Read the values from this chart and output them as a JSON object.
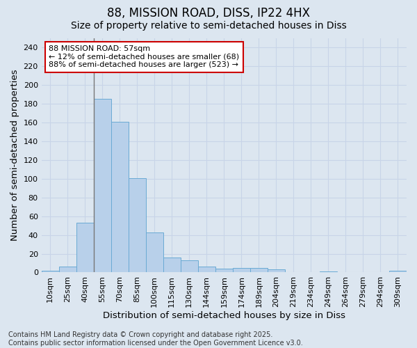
{
  "title_line1": "88, MISSION ROAD, DISS, IP22 4HX",
  "title_line2": "Size of property relative to semi-detached houses in Diss",
  "xlabel": "Distribution of semi-detached houses by size in Diss",
  "ylabel": "Number of semi-detached properties",
  "categories": [
    "10sqm",
    "25sqm",
    "40sqm",
    "55sqm",
    "70sqm",
    "85sqm",
    "100sqm",
    "115sqm",
    "130sqm",
    "144sqm",
    "159sqm",
    "174sqm",
    "189sqm",
    "204sqm",
    "219sqm",
    "234sqm",
    "249sqm",
    "264sqm",
    "279sqm",
    "294sqm",
    "309sqm"
  ],
  "values": [
    2,
    6,
    53,
    185,
    161,
    101,
    43,
    16,
    13,
    6,
    4,
    5,
    5,
    3,
    0,
    0,
    1,
    0,
    0,
    0,
    2
  ],
  "bar_color": "#b8d0ea",
  "bar_edge_color": "#6aaad4",
  "annotation_text_line1": "88 MISSION ROAD: 57sqm",
  "annotation_text_line2": "← 12% of semi-detached houses are smaller (68)",
  "annotation_text_line3": "88% of semi-detached houses are larger (523) →",
  "annotation_box_color": "#ffffff",
  "annotation_box_edge_color": "#cc0000",
  "vline_x": 2.5,
  "vline_color": "#777777",
  "ylim": [
    0,
    250
  ],
  "yticks": [
    0,
    20,
    40,
    60,
    80,
    100,
    120,
    140,
    160,
    180,
    200,
    220,
    240
  ],
  "grid_color": "#c8d4e8",
  "background_color": "#dce6f0",
  "footer_text": "Contains HM Land Registry data © Crown copyright and database right 2025.\nContains public sector information licensed under the Open Government Licence v3.0.",
  "title_fontsize": 12,
  "subtitle_fontsize": 10,
  "axis_label_fontsize": 9.5,
  "tick_fontsize": 8,
  "annotation_fontsize": 8,
  "footer_fontsize": 7
}
